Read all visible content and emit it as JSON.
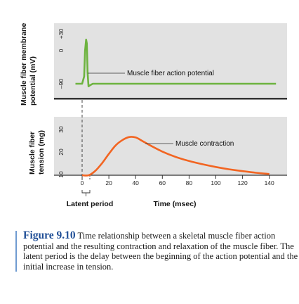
{
  "chart_data": [
    {
      "type": "line",
      "ylabel": "Muscle fiber membrane potential (mV)",
      "yticks": [
        "+30",
        "0",
        "–90"
      ],
      "ylim": [
        -130,
        45
      ],
      "xlim": [
        -5,
        145
      ],
      "series": [
        {
          "name": "Muscle fiber action potential",
          "color": "#6db33f",
          "x": [
            -5,
            0,
            1.5,
            2.2,
            3.0,
            3.5,
            4.1,
            4.8,
            6,
            8,
            145
          ],
          "y": [
            -90,
            -90,
            -70,
            0,
            30,
            20,
            -60,
            -97,
            -94,
            -90,
            -90
          ]
        }
      ]
    },
    {
      "type": "line",
      "ylabel": "Muscle fiber tension (mg)",
      "xlabel": "Time (msec)",
      "yticks": [
        10,
        20,
        30
      ],
      "xticks": [
        0,
        20,
        40,
        60,
        80,
        100,
        120,
        140
      ],
      "xlim": [
        -5,
        145
      ],
      "ylim": [
        0,
        36
      ],
      "series": [
        {
          "name": "Muscle contraction",
          "color": "#f26522",
          "x": [
            0,
            5,
            10,
            15,
            20,
            25,
            30,
            35,
            40,
            45,
            50,
            60,
            70,
            80,
            90,
            100,
            110,
            120,
            130,
            140
          ],
          "y": [
            0,
            0,
            3,
            8,
            14,
            19.5,
            23,
            25,
            24.8,
            22.5,
            20,
            15.5,
            12,
            9.3,
            7.2,
            5.4,
            3.9,
            2.7,
            1.6,
            0.8
          ]
        }
      ],
      "annotations": {
        "latent_period": "Latent period"
      }
    }
  ],
  "caption": {
    "label": "Figure 9.10",
    "text": "Time relationship between a skeletal muscle fiber action potential and the resulting contraction and relaxation of the muscle fiber. The latent period is the delay between the beginning of the action potential and the initial increase in tension."
  },
  "colors": {
    "panel": "#e2e2e2",
    "caption_rule": "#6f9bd1",
    "figure_label": "#1f4e96"
  }
}
